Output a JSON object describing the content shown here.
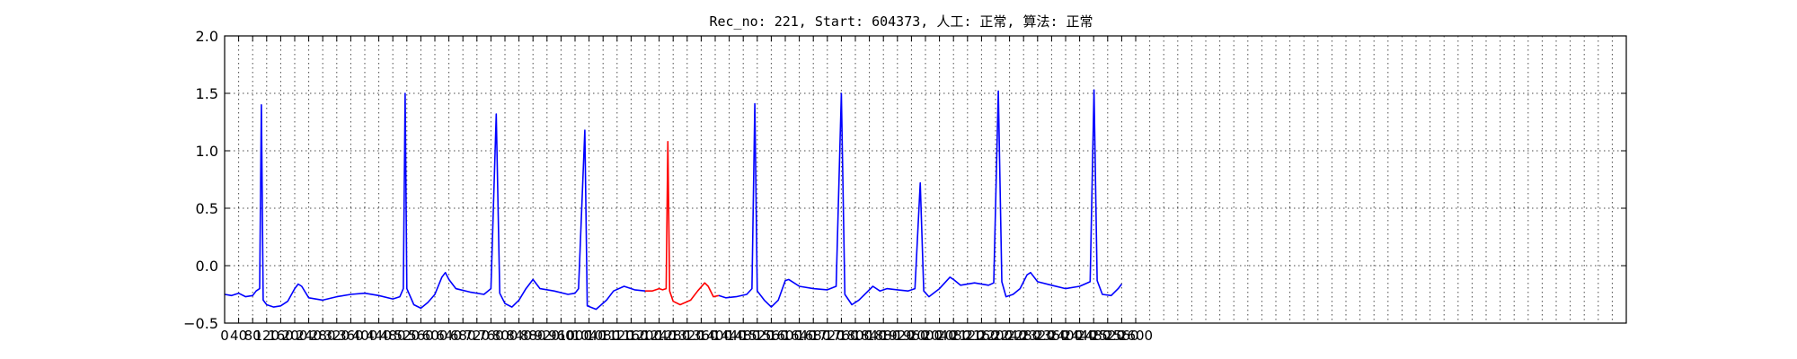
{
  "chart_data": {
    "type": "line",
    "title": "Rec_no: 221, Start: 604373, 人工: 正常, 算法: 正常",
    "xlabel": "",
    "ylabel": "",
    "xlim": [
      0,
      4000
    ],
    "ylim": [
      -0.5,
      2.0
    ],
    "yticks": [
      -0.5,
      0.0,
      0.5,
      1.0,
      1.5,
      2.0
    ],
    "ytick_labels": [
      "−0.5",
      "0.0",
      "0.5",
      "1.0",
      "1.5",
      "2.0"
    ],
    "xtick_step": 40,
    "xtick_labels": [
      "0",
      "40",
      "80",
      "120",
      "160",
      "200",
      "240",
      "280",
      "320",
      "360",
      "400",
      "440",
      "480",
      "520",
      "560",
      "600",
      "640",
      "680",
      "720",
      "760",
      "800",
      "840",
      "880",
      "920",
      "960",
      "1000",
      "1040",
      "1080",
      "1120",
      "1160",
      "1200",
      "1240",
      "1280",
      "1320",
      "1360",
      "1400",
      "1440",
      "1480",
      "1520",
      "1560",
      "1600",
      "1640",
      "1680",
      "1720",
      "1760",
      "1800",
      "1840",
      "1880",
      "1920",
      "1960",
      "2000",
      "2040",
      "2080",
      "2120",
      "2160",
      "2200",
      "2240",
      "2280",
      "2320",
      "2360",
      "2400",
      "2440",
      "2480",
      "2520",
      "2560",
      "2600"
    ],
    "grid": true,
    "colors": {
      "normal": "#0000ff",
      "highlight": "#ff0000"
    },
    "series": [
      {
        "color": "#0000ff",
        "points": [
          [
            0,
            -0.25
          ],
          [
            20,
            -0.26
          ],
          [
            40,
            -0.24
          ],
          [
            60,
            -0.27
          ],
          [
            80,
            -0.26
          ],
          [
            90,
            -0.22
          ],
          [
            100,
            -0.2
          ],
          [
            105,
            1.4
          ],
          [
            110,
            -0.3
          ],
          [
            120,
            -0.34
          ],
          [
            140,
            -0.36
          ],
          [
            160,
            -0.35
          ],
          [
            180,
            -0.31
          ],
          [
            200,
            -0.2
          ],
          [
            210,
            -0.16
          ],
          [
            220,
            -0.18
          ],
          [
            240,
            -0.28
          ],
          [
            280,
            -0.3
          ],
          [
            320,
            -0.27
          ],
          [
            360,
            -0.25
          ],
          [
            400,
            -0.24
          ],
          [
            440,
            -0.26
          ],
          [
            480,
            -0.29
          ],
          [
            500,
            -0.27
          ],
          [
            510,
            -0.2
          ],
          [
            515,
            1.5
          ],
          [
            520,
            -0.2
          ],
          [
            540,
            -0.34
          ],
          [
            560,
            -0.37
          ],
          [
            580,
            -0.32
          ],
          [
            600,
            -0.25
          ],
          [
            620,
            -0.1
          ],
          [
            630,
            -0.06
          ],
          [
            640,
            -0.12
          ],
          [
            660,
            -0.2
          ],
          [
            700,
            -0.23
          ],
          [
            740,
            -0.25
          ],
          [
            760,
            -0.2
          ],
          [
            775,
            1.32
          ],
          [
            785,
            -0.24
          ],
          [
            800,
            -0.33
          ],
          [
            820,
            -0.36
          ],
          [
            840,
            -0.3
          ],
          [
            860,
            -0.2
          ],
          [
            880,
            -0.12
          ],
          [
            900,
            -0.2
          ],
          [
            940,
            -0.22
          ],
          [
            980,
            -0.25
          ],
          [
            1000,
            -0.24
          ],
          [
            1010,
            -0.2
          ],
          [
            1028,
            1.18
          ],
          [
            1035,
            -0.35
          ],
          [
            1060,
            -0.38
          ],
          [
            1090,
            -0.3
          ],
          [
            1110,
            -0.22
          ],
          [
            1140,
            -0.18
          ],
          [
            1170,
            -0.21
          ],
          [
            1200,
            -0.22
          ]
        ]
      },
      {
        "color": "#ff0000",
        "points": [
          [
            1200,
            -0.22
          ],
          [
            1220,
            -0.22
          ],
          [
            1240,
            -0.2
          ],
          [
            1250,
            -0.21
          ],
          [
            1260,
            -0.2
          ],
          [
            1265,
            1.08
          ],
          [
            1270,
            -0.22
          ],
          [
            1280,
            -0.31
          ],
          [
            1300,
            -0.34
          ],
          [
            1330,
            -0.3
          ],
          [
            1350,
            -0.22
          ],
          [
            1370,
            -0.15
          ],
          [
            1380,
            -0.18
          ],
          [
            1395,
            -0.27
          ],
          [
            1410,
            -0.26
          ]
        ]
      },
      {
        "color": "#0000ff",
        "points": [
          [
            1410,
            -0.26
          ],
          [
            1430,
            -0.28
          ],
          [
            1460,
            -0.27
          ],
          [
            1490,
            -0.25
          ],
          [
            1505,
            -0.2
          ],
          [
            1513,
            1.41
          ],
          [
            1520,
            -0.22
          ],
          [
            1540,
            -0.3
          ],
          [
            1560,
            -0.36
          ],
          [
            1580,
            -0.3
          ],
          [
            1600,
            -0.13
          ],
          [
            1610,
            -0.12
          ],
          [
            1640,
            -0.18
          ],
          [
            1680,
            -0.2
          ],
          [
            1720,
            -0.21
          ],
          [
            1745,
            -0.18
          ],
          [
            1760,
            1.5
          ],
          [
            1770,
            -0.25
          ],
          [
            1790,
            -0.34
          ],
          [
            1810,
            -0.3
          ],
          [
            1850,
            -0.18
          ],
          [
            1870,
            -0.22
          ],
          [
            1890,
            -0.2
          ],
          [
            1920,
            -0.21
          ],
          [
            1950,
            -0.22
          ],
          [
            1970,
            -0.2
          ],
          [
            1985,
            0.72
          ],
          [
            1995,
            -0.22
          ],
          [
            2010,
            -0.27
          ],
          [
            2040,
            -0.2
          ],
          [
            2070,
            -0.1
          ],
          [
            2080,
            -0.12
          ],
          [
            2100,
            -0.17
          ],
          [
            2140,
            -0.15
          ],
          [
            2180,
            -0.17
          ],
          [
            2195,
            -0.15
          ],
          [
            2208,
            1.52
          ],
          [
            2218,
            -0.14
          ],
          [
            2230,
            -0.27
          ],
          [
            2250,
            -0.25
          ],
          [
            2270,
            -0.2
          ],
          [
            2290,
            -0.08
          ],
          [
            2300,
            -0.06
          ],
          [
            2320,
            -0.14
          ],
          [
            2360,
            -0.17
          ],
          [
            2400,
            -0.2
          ],
          [
            2440,
            -0.18
          ],
          [
            2470,
            -0.14
          ],
          [
            2481,
            1.53
          ],
          [
            2490,
            -0.13
          ],
          [
            2505,
            -0.25
          ],
          [
            2530,
            -0.26
          ],
          [
            2550,
            -0.2
          ],
          [
            2560,
            -0.16
          ]
        ]
      }
    ]
  }
}
